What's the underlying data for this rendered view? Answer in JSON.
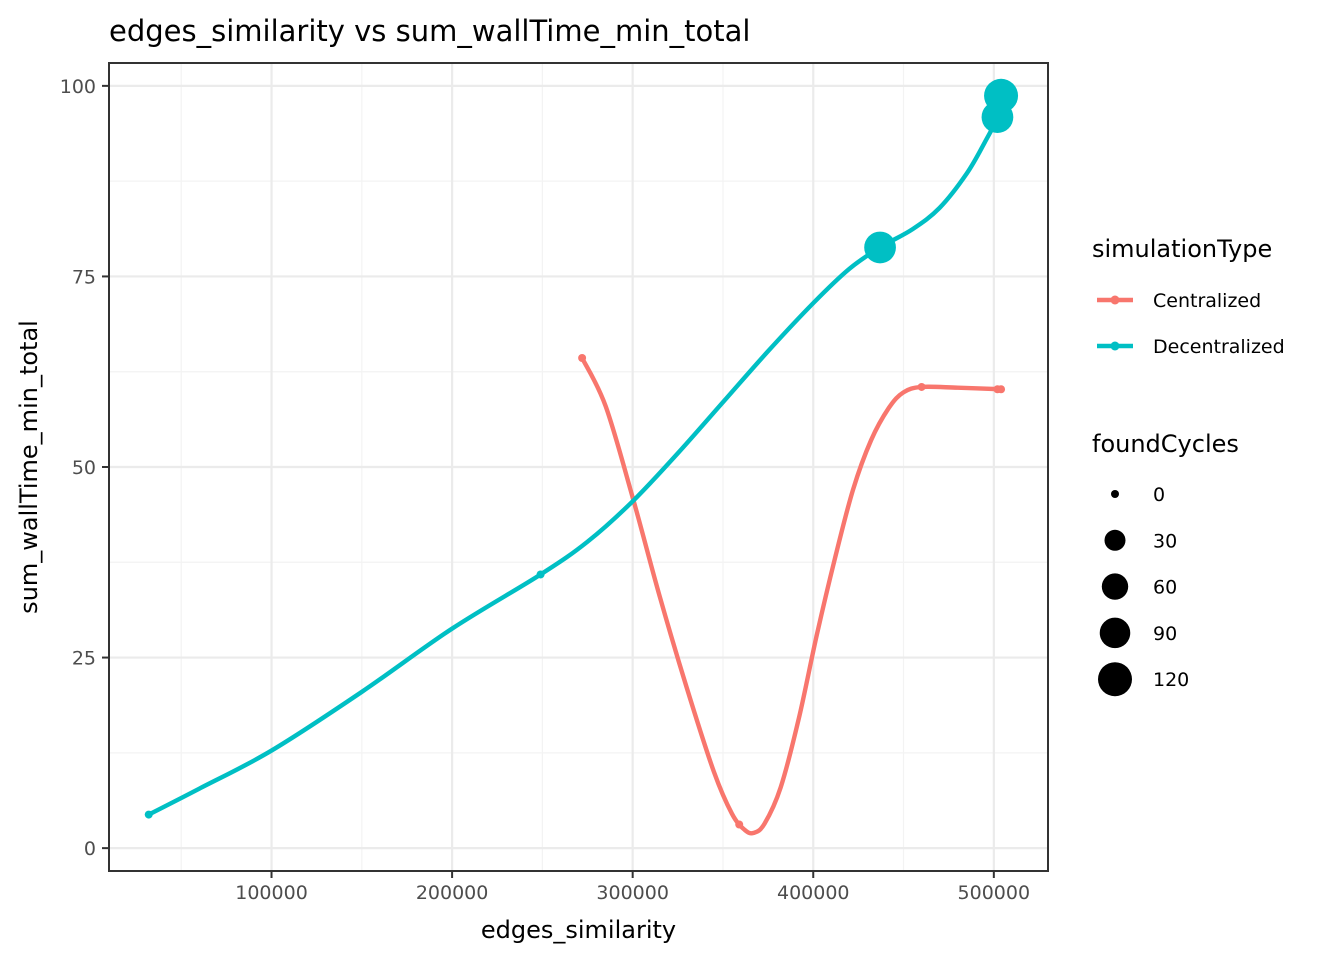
{
  "chart_data": {
    "type": "line",
    "title": "edges_similarity  vs  sum_wallTime_min_total",
    "xlabel": "edges_similarity",
    "ylabel": "sum_wallTime_min_total",
    "xlim": [
      10000,
      530000
    ],
    "ylim": [
      -3,
      103
    ],
    "x_ticks": [
      100000,
      200000,
      300000,
      400000,
      500000
    ],
    "y_ticks": [
      0,
      25,
      50,
      75,
      100
    ],
    "grid": true,
    "legend_position": "right",
    "series": [
      {
        "name": "Centralized",
        "color": "#F8766D",
        "points": [
          {
            "x": 272000,
            "y": 64.3,
            "foundCycles": 0
          },
          {
            "x": 359000,
            "y": 3.1,
            "foundCycles": 0
          },
          {
            "x": 460000,
            "y": 60.5,
            "foundCycles": 0
          },
          {
            "x": 502000,
            "y": 60.2,
            "foundCycles": 0
          },
          {
            "x": 504000,
            "y": 60.2,
            "foundCycles": 0
          }
        ],
        "curve": [
          [
            272000,
            64.3
          ],
          [
            285000,
            58
          ],
          [
            300000,
            46
          ],
          [
            315000,
            33
          ],
          [
            330000,
            21
          ],
          [
            345000,
            10
          ],
          [
            355000,
            4.5
          ],
          [
            362000,
            2.4
          ],
          [
            367000,
            2.0
          ],
          [
            373000,
            3.2
          ],
          [
            382000,
            8
          ],
          [
            392000,
            17
          ],
          [
            402000,
            28
          ],
          [
            412000,
            38
          ],
          [
            422000,
            47
          ],
          [
            432000,
            53.5
          ],
          [
            442000,
            57.8
          ],
          [
            450000,
            59.8
          ],
          [
            460000,
            60.5
          ],
          [
            480000,
            60.4
          ],
          [
            504000,
            60.2
          ]
        ]
      },
      {
        "name": "Decentralized",
        "color": "#00BFC4",
        "points": [
          {
            "x": 32000,
            "y": 4.4,
            "foundCycles": 0
          },
          {
            "x": 249000,
            "y": 35.9,
            "foundCycles": 0
          },
          {
            "x": 437000,
            "y": 78.8,
            "foundCycles": 100
          },
          {
            "x": 502000,
            "y": 95.9,
            "foundCycles": 100
          },
          {
            "x": 504000,
            "y": 98.7,
            "foundCycles": 120
          }
        ],
        "curve": [
          [
            32000,
            4.4
          ],
          [
            60000,
            7.8
          ],
          [
            100000,
            12.8
          ],
          [
            150000,
            20.5
          ],
          [
            200000,
            28.8
          ],
          [
            249000,
            35.9
          ],
          [
            275000,
            40.2
          ],
          [
            300000,
            45.5
          ],
          [
            325000,
            51.8
          ],
          [
            350000,
            58.5
          ],
          [
            375000,
            65.2
          ],
          [
            400000,
            71.5
          ],
          [
            420000,
            76.0
          ],
          [
            437000,
            78.8
          ],
          [
            455000,
            81.2
          ],
          [
            470000,
            84.0
          ],
          [
            485000,
            88.5
          ],
          [
            495000,
            92.6
          ],
          [
            502000,
            95.9
          ],
          [
            504000,
            98.7
          ]
        ]
      }
    ],
    "legend": {
      "color_title": "simulationType",
      "size_title": "foundCycles",
      "size_entries": [
        {
          "label": "0",
          "value": 0
        },
        {
          "label": "30",
          "value": 30
        },
        {
          "label": "60",
          "value": 60
        },
        {
          "label": "90",
          "value": 90
        },
        {
          "label": "120",
          "value": 120
        }
      ]
    },
    "colors": {
      "panel_border": "#333333",
      "grid_major": "#ebebeb",
      "grid_minor": "#f3f3f3",
      "size_key": "#000000"
    }
  }
}
